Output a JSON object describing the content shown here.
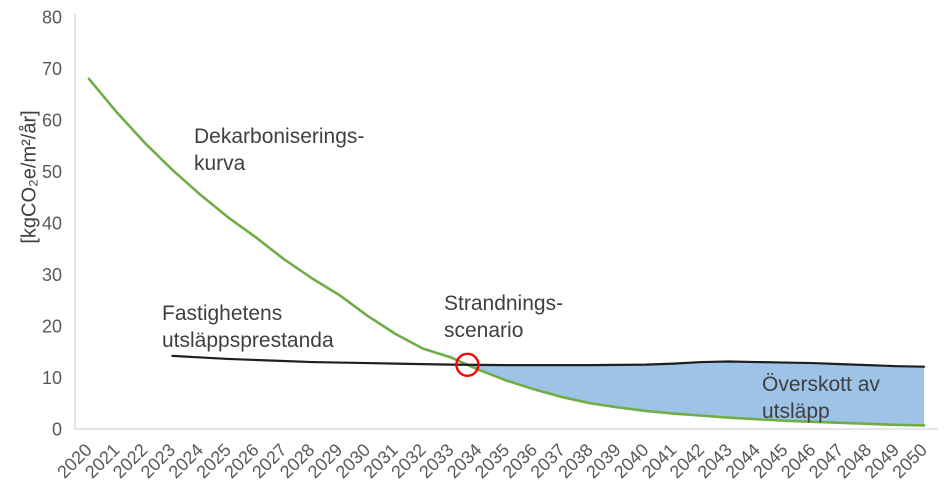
{
  "y_axis": {
    "label": "[kgCO₂e/m²/år]",
    "tick_values": [
      0,
      10,
      20,
      30,
      40,
      50,
      60,
      70,
      80
    ]
  },
  "annotations": {
    "decarbonization": "Dekarboniserings-\nkurva",
    "property_performance": "Fastighetens\nutsläppsprestanda",
    "stranding": "Strandnings-\nscenario",
    "excess": "Överskott av\nutsläpp"
  },
  "colors": {
    "decarbonization_line": "#6FAE46",
    "property_line": "#1f1f1f",
    "excess_fill": "#9DC3E6",
    "stranding_circle": "#FF0000",
    "tick_text": "#595959",
    "annotation_text": "#3f3f3f",
    "axis_line": "#D6D6D6"
  },
  "chart_data": {
    "type": "line",
    "title": "",
    "xlabel": "",
    "ylabel": "[kgCO₂e/m²/år]",
    "ylim": [
      0,
      80
    ],
    "y_ticks": [
      0,
      10,
      20,
      30,
      40,
      50,
      60,
      70,
      80
    ],
    "grid": false,
    "legend_position": "none (labels drawn inline on chart)",
    "x": [
      2020,
      2021,
      2022,
      2023,
      2024,
      2025,
      2026,
      2027,
      2028,
      2029,
      2030,
      2031,
      2032,
      2033,
      2034,
      2035,
      2036,
      2037,
      2038,
      2039,
      2040,
      2041,
      2042,
      2043,
      2044,
      2045,
      2046,
      2047,
      2048,
      2049,
      2050
    ],
    "series": [
      {
        "name": "Dekarboniseringskurva",
        "color": "#6FAE46",
        "values": [
          68,
          61.5,
          55.6,
          50.3,
          45.5,
          41.1,
          37.2,
          33,
          29.3,
          26,
          22,
          18.5,
          15.6,
          13.9,
          11.5,
          9.4,
          7.7,
          6.2,
          5,
          4.2,
          3.5,
          3,
          2.6,
          2.2,
          1.9,
          1.6,
          1.4,
          1.2,
          1,
          0.8,
          0.7
        ]
      },
      {
        "name": "Fastighetens utsläppsprestanda",
        "color": "#1f1f1f",
        "values": [
          null,
          null,
          null,
          14.2,
          13.9,
          13.6,
          13.4,
          13.2,
          13,
          12.9,
          12.8,
          12.7,
          12.6,
          12.5,
          12.45,
          12.4,
          12.4,
          12.4,
          12.4,
          12.45,
          12.5,
          12.7,
          13,
          13.1,
          13,
          12.9,
          12.8,
          12.6,
          12.4,
          12.2,
          12.1
        ]
      }
    ],
    "area_between": {
      "name": "Överskott av utsläpp",
      "description": "shaded region between property line (top) and decarbonization curve (bottom) after the stranding point",
      "fill": "#9DC3E6",
      "from_year_approx": 2033.6,
      "to_year": 2050
    },
    "stranding_point": {
      "name": "Strandningsscenario",
      "marker": "red circle outline",
      "color": "#FF0000",
      "year_approx": 2033.6,
      "value_approx": 12.5
    }
  }
}
